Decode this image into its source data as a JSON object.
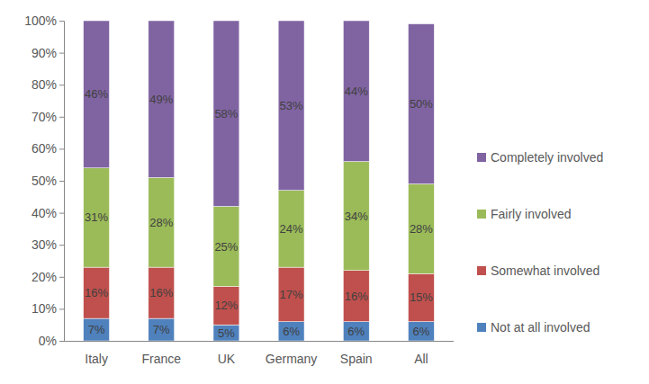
{
  "chart_data": {
    "type": "bar",
    "stacked": true,
    "data_labels": true,
    "grid": false,
    "legend": "right",
    "categories": [
      "Italy",
      "France",
      "UK",
      "Germany",
      "Spain",
      "All"
    ],
    "ylim": [
      0,
      100
    ],
    "yticks": [
      {
        "value": 0,
        "label": "0%"
      },
      {
        "value": 10,
        "label": "10%"
      },
      {
        "value": 20,
        "label": "20%"
      },
      {
        "value": 30,
        "label": "30%"
      },
      {
        "value": 40,
        "label": "40%"
      },
      {
        "value": 50,
        "label": "50%"
      },
      {
        "value": 60,
        "label": "60%"
      },
      {
        "value": 70,
        "label": "70%"
      },
      {
        "value": 80,
        "label": "80%"
      },
      {
        "value": 90,
        "label": "90%"
      },
      {
        "value": 100,
        "label": "100%"
      }
    ],
    "series": [
      {
        "name": "Not at all involved",
        "color": "#4f81bd",
        "values": [
          7,
          7,
          5,
          6,
          6,
          6
        ],
        "value_labels": [
          "7%",
          "7%",
          "5%",
          "6%",
          "6%",
          "6%"
        ]
      },
      {
        "name": "Somewhat involved",
        "color": "#c0504d",
        "values": [
          16,
          16,
          12,
          17,
          16,
          15
        ],
        "value_labels": [
          "16%",
          "16%",
          "12%",
          "17%",
          "16%",
          "15%"
        ]
      },
      {
        "name": "Fairly involved",
        "color": "#9bbb59",
        "values": [
          31,
          28,
          25,
          24,
          34,
          28
        ],
        "value_labels": [
          "31%",
          "28%",
          "25%",
          "24%",
          "34%",
          "28%"
        ]
      },
      {
        "name": "Completely involved",
        "color": "#8064a2",
        "values": [
          46,
          49,
          58,
          53,
          44,
          50
        ],
        "value_labels": [
          "46%",
          "49%",
          "58%",
          "53%",
          "44%",
          "50%"
        ]
      }
    ]
  }
}
